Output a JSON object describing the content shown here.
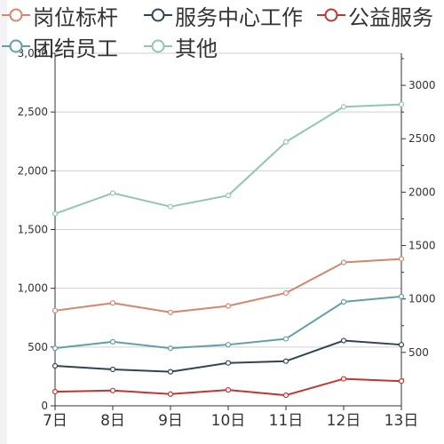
{
  "chart_data": {
    "type": "line",
    "categories": [
      "7日",
      "8日",
      "9日",
      "10日",
      "11日",
      "12日",
      "13日"
    ],
    "series": [
      {
        "name": "岗位标杆",
        "color": "#d4866b",
        "axis": "left",
        "values": [
          810,
          875,
          795,
          850,
          960,
          1220,
          1250
        ]
      },
      {
        "name": "服务中心工作",
        "color": "#2f4554",
        "axis": "left",
        "values": [
          340,
          310,
          290,
          365,
          380,
          555,
          520
        ]
      },
      {
        "name": "公益服务",
        "color": "#c23531",
        "axis": "left",
        "values": [
          120,
          130,
          100,
          135,
          90,
          230,
          210
        ]
      },
      {
        "name": "团结员工",
        "color": "#61a0a8",
        "axis": "left",
        "values": [
          490,
          545,
          490,
          520,
          570,
          885,
          930
        ]
      },
      {
        "name": "其他",
        "color": "#91c7ae",
        "axis": "left",
        "values": [
          1635,
          1810,
          1695,
          1790,
          2245,
          2545,
          2565
        ]
      }
    ],
    "y_left": {
      "min": 0,
      "max": 3000,
      "step": 500,
      "tick_labels": [
        "0",
        "500",
        "1,000",
        "1,500",
        "2,000",
        "2,500",
        "3,000"
      ]
    },
    "y_right": {
      "min": 0,
      "max": 3300,
      "ticks": [
        500,
        1000,
        1500,
        2000,
        2500,
        3000
      ],
      "tick_labels": [
        "500",
        "1000",
        "1500",
        "2000",
        "2500",
        "3000"
      ]
    },
    "grid": true,
    "legend_position": "top-left",
    "xlabel": "",
    "ylabel": ""
  }
}
